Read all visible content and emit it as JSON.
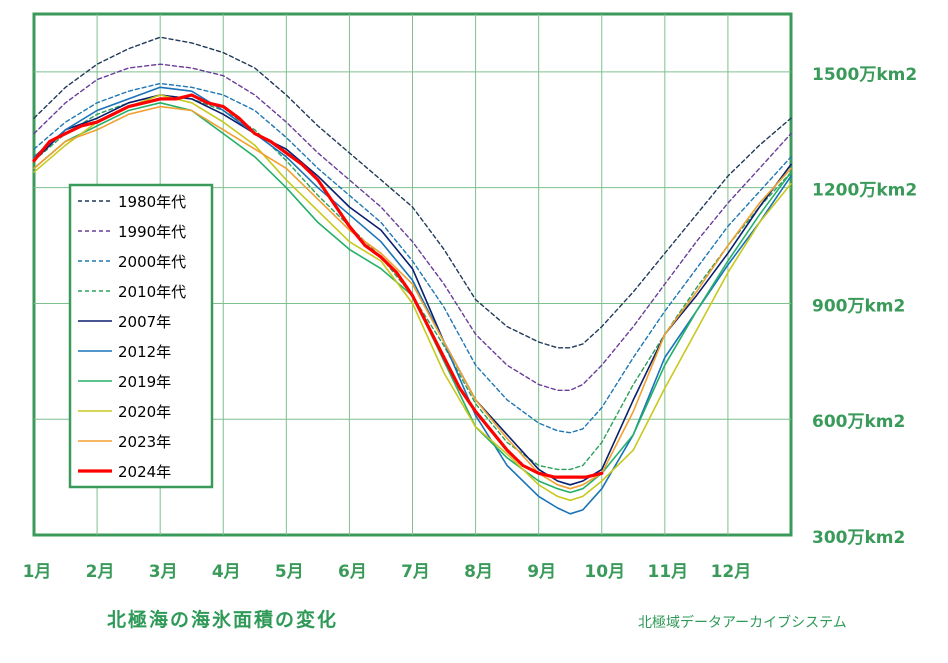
{
  "chart_data": {
    "type": "line",
    "title": "北極海の海氷面積の変化",
    "credit": "北極域データアーカイブシステム",
    "x_unit": "month",
    "xlim": [
      1,
      13
    ],
    "ylim": [
      300,
      1650
    ],
    "x_ticks": [
      "1月",
      "2月",
      "3月",
      "4月",
      "5月",
      "6月",
      "7月",
      "8月",
      "9月",
      "10月",
      "11月",
      "12月"
    ],
    "y_ticks": [
      {
        "value": 300,
        "label": "300万km2"
      },
      {
        "value": 600,
        "label": "600万km2"
      },
      {
        "value": 900,
        "label": "900万km2"
      },
      {
        "value": 1200,
        "label": "1200万km2"
      },
      {
        "value": 1500,
        "label": "1500万km2"
      }
    ],
    "grid": true,
    "legend_position": "left-middle",
    "series": [
      {
        "name": "1980年代",
        "color": "#1f3a5a",
        "dash": "dashed",
        "width": 1.4,
        "x": [
          1,
          1.5,
          2,
          2.5,
          3,
          3.5,
          4,
          4.5,
          5,
          5.5,
          6,
          6.5,
          7,
          7.5,
          8,
          8.5,
          9,
          9.3,
          9.5,
          9.7,
          10,
          10.5,
          11,
          11.5,
          12,
          12.5,
          13
        ],
        "y": [
          1380,
          1460,
          1520,
          1560,
          1590,
          1575,
          1550,
          1510,
          1440,
          1360,
          1290,
          1220,
          1150,
          1040,
          910,
          840,
          800,
          785,
          785,
          795,
          840,
          930,
          1030,
          1130,
          1230,
          1310,
          1380
        ]
      },
      {
        "name": "1990年代",
        "color": "#6a3d9a",
        "dash": "dashed",
        "width": 1.4,
        "x": [
          1,
          1.5,
          2,
          2.5,
          3,
          3.5,
          4,
          4.5,
          5,
          5.5,
          6,
          6.5,
          7,
          7.5,
          8,
          8.5,
          9,
          9.3,
          9.5,
          9.7,
          10,
          10.5,
          11,
          11.5,
          12,
          12.5,
          13
        ],
        "y": [
          1340,
          1420,
          1480,
          1510,
          1520,
          1510,
          1490,
          1440,
          1370,
          1290,
          1220,
          1150,
          1060,
          950,
          820,
          740,
          690,
          675,
          675,
          690,
          740,
          840,
          950,
          1060,
          1160,
          1250,
          1340
        ]
      },
      {
        "name": "2000年代",
        "color": "#1f77b4",
        "dash": "dashed",
        "width": 1.4,
        "x": [
          1,
          1.5,
          2,
          2.5,
          3,
          3.5,
          4,
          4.5,
          5,
          5.5,
          6,
          6.5,
          7,
          7.5,
          8,
          8.5,
          9,
          9.3,
          9.5,
          9.7,
          10,
          10.5,
          11,
          11.5,
          12,
          12.5,
          13
        ],
        "y": [
          1300,
          1370,
          1420,
          1450,
          1470,
          1460,
          1440,
          1400,
          1330,
          1250,
          1180,
          1110,
          1010,
          890,
          740,
          650,
          590,
          570,
          565,
          575,
          630,
          760,
          880,
          990,
          1100,
          1190,
          1280
        ]
      },
      {
        "name": "2010年代",
        "color": "#2ca05a",
        "dash": "dashed",
        "width": 1.4,
        "x": [
          1,
          1.5,
          2,
          2.5,
          3,
          3.5,
          4,
          4.5,
          5,
          5.5,
          6,
          6.5,
          7,
          7.5,
          8,
          8.5,
          9,
          9.3,
          9.5,
          9.7,
          10,
          10.5,
          11,
          11.5,
          12,
          12.5,
          13
        ],
        "y": [
          1270,
          1340,
          1390,
          1420,
          1440,
          1430,
          1400,
          1350,
          1270,
          1180,
          1100,
          1020,
          920,
          790,
          640,
          540,
          480,
          470,
          470,
          480,
          540,
          690,
          820,
          940,
          1050,
          1150,
          1240
        ]
      },
      {
        "name": "2007年",
        "color": "#0a1f6e",
        "dash": "solid",
        "width": 1.6,
        "x": [
          1,
          1.5,
          2,
          2.5,
          3,
          3.5,
          4,
          4.5,
          5,
          5.5,
          6,
          6.5,
          7,
          7.5,
          8,
          8.5,
          9,
          9.3,
          9.5,
          9.7,
          10,
          10.5,
          11,
          11.5,
          12,
          12.5,
          13
        ],
        "y": [
          1270,
          1350,
          1380,
          1420,
          1440,
          1430,
          1390,
          1340,
          1300,
          1230,
          1150,
          1090,
          990,
          800,
          650,
          560,
          470,
          440,
          430,
          440,
          470,
          650,
          820,
          920,
          1030,
          1150,
          1260
        ]
      },
      {
        "name": "2012年",
        "color": "#1a73b8",
        "dash": "solid",
        "width": 1.6,
        "x": [
          1,
          1.5,
          2,
          2.5,
          3,
          3.5,
          4,
          4.5,
          5,
          5.5,
          6,
          6.5,
          7,
          7.5,
          8,
          8.5,
          9,
          9.3,
          9.5,
          9.7,
          10,
          10.5,
          11,
          11.5,
          12,
          12.5,
          13
        ],
        "y": [
          1280,
          1350,
          1400,
          1430,
          1460,
          1450,
          1400,
          1340,
          1280,
          1200,
          1130,
          1060,
          960,
          800,
          610,
          480,
          400,
          370,
          355,
          365,
          420,
          560,
          760,
          880,
          1000,
          1110,
          1230
        ]
      },
      {
        "name": "2019年",
        "color": "#25b06a",
        "dash": "solid",
        "width": 1.6,
        "x": [
          1,
          1.5,
          2,
          2.5,
          3,
          3.5,
          4,
          4.5,
          5,
          5.5,
          6,
          6.5,
          7,
          7.5,
          8,
          8.5,
          9,
          9.3,
          9.5,
          9.7,
          10,
          10.5,
          11,
          11.5,
          12,
          12.5,
          13
        ],
        "y": [
          1250,
          1320,
          1360,
          1400,
          1420,
          1400,
          1340,
          1280,
          1200,
          1110,
          1040,
          990,
          920,
          750,
          580,
          500,
          440,
          420,
          410,
          420,
          460,
          560,
          740,
          880,
          1010,
          1130,
          1240
        ]
      },
      {
        "name": "2020年",
        "color": "#c8c81e",
        "dash": "solid",
        "width": 1.6,
        "x": [
          1,
          1.5,
          2,
          2.5,
          3,
          3.5,
          4,
          4.5,
          5,
          5.5,
          6,
          6.5,
          7,
          7.5,
          8,
          8.5,
          9,
          9.3,
          9.5,
          9.7,
          10,
          10.5,
          11,
          11.5,
          12,
          12.5,
          13
        ],
        "y": [
          1240,
          1310,
          1370,
          1410,
          1440,
          1420,
          1370,
          1310,
          1220,
          1140,
          1060,
          1010,
          900,
          720,
          580,
          510,
          430,
          400,
          390,
          400,
          440,
          520,
          680,
          830,
          980,
          1110,
          1210
        ]
      },
      {
        "name": "2023年",
        "color": "#f0a030",
        "dash": "solid",
        "width": 1.6,
        "x": [
          1,
          1.5,
          2,
          2.5,
          3,
          3.5,
          4,
          4.5,
          5,
          5.5,
          6,
          6.5,
          7,
          7.5,
          8,
          8.5,
          9,
          9.3,
          9.5,
          9.7,
          10,
          10.5,
          11,
          11.5,
          12,
          12.5,
          13
        ],
        "y": [
          1250,
          1320,
          1350,
          1390,
          1410,
          1400,
          1350,
          1300,
          1250,
          1170,
          1090,
          1030,
          950,
          800,
          650,
          550,
          460,
          430,
          420,
          430,
          460,
          620,
          820,
          930,
          1050,
          1160,
          1250
        ]
      },
      {
        "name": "2024年",
        "color": "#ff0000",
        "dash": "solid",
        "width": 3.2,
        "x": [
          1,
          1.25,
          1.5,
          1.75,
          2,
          2.25,
          2.5,
          2.75,
          3,
          3.25,
          3.5,
          3.75,
          4,
          4.25,
          4.5,
          4.75,
          5,
          5.25,
          5.5,
          5.75,
          6,
          6.25,
          6.5,
          6.75,
          7,
          7.25,
          7.5,
          7.75,
          8,
          8.25,
          8.5,
          8.75,
          9,
          9.25,
          9.5,
          9.75,
          10
        ],
        "y": [
          1270,
          1320,
          1340,
          1360,
          1370,
          1390,
          1410,
          1420,
          1430,
          1430,
          1440,
          1420,
          1410,
          1380,
          1340,
          1320,
          1290,
          1260,
          1220,
          1160,
          1100,
          1050,
          1020,
          980,
          920,
          840,
          760,
          680,
          620,
          570,
          520,
          480,
          460,
          450,
          450,
          450,
          460
        ]
      }
    ]
  }
}
